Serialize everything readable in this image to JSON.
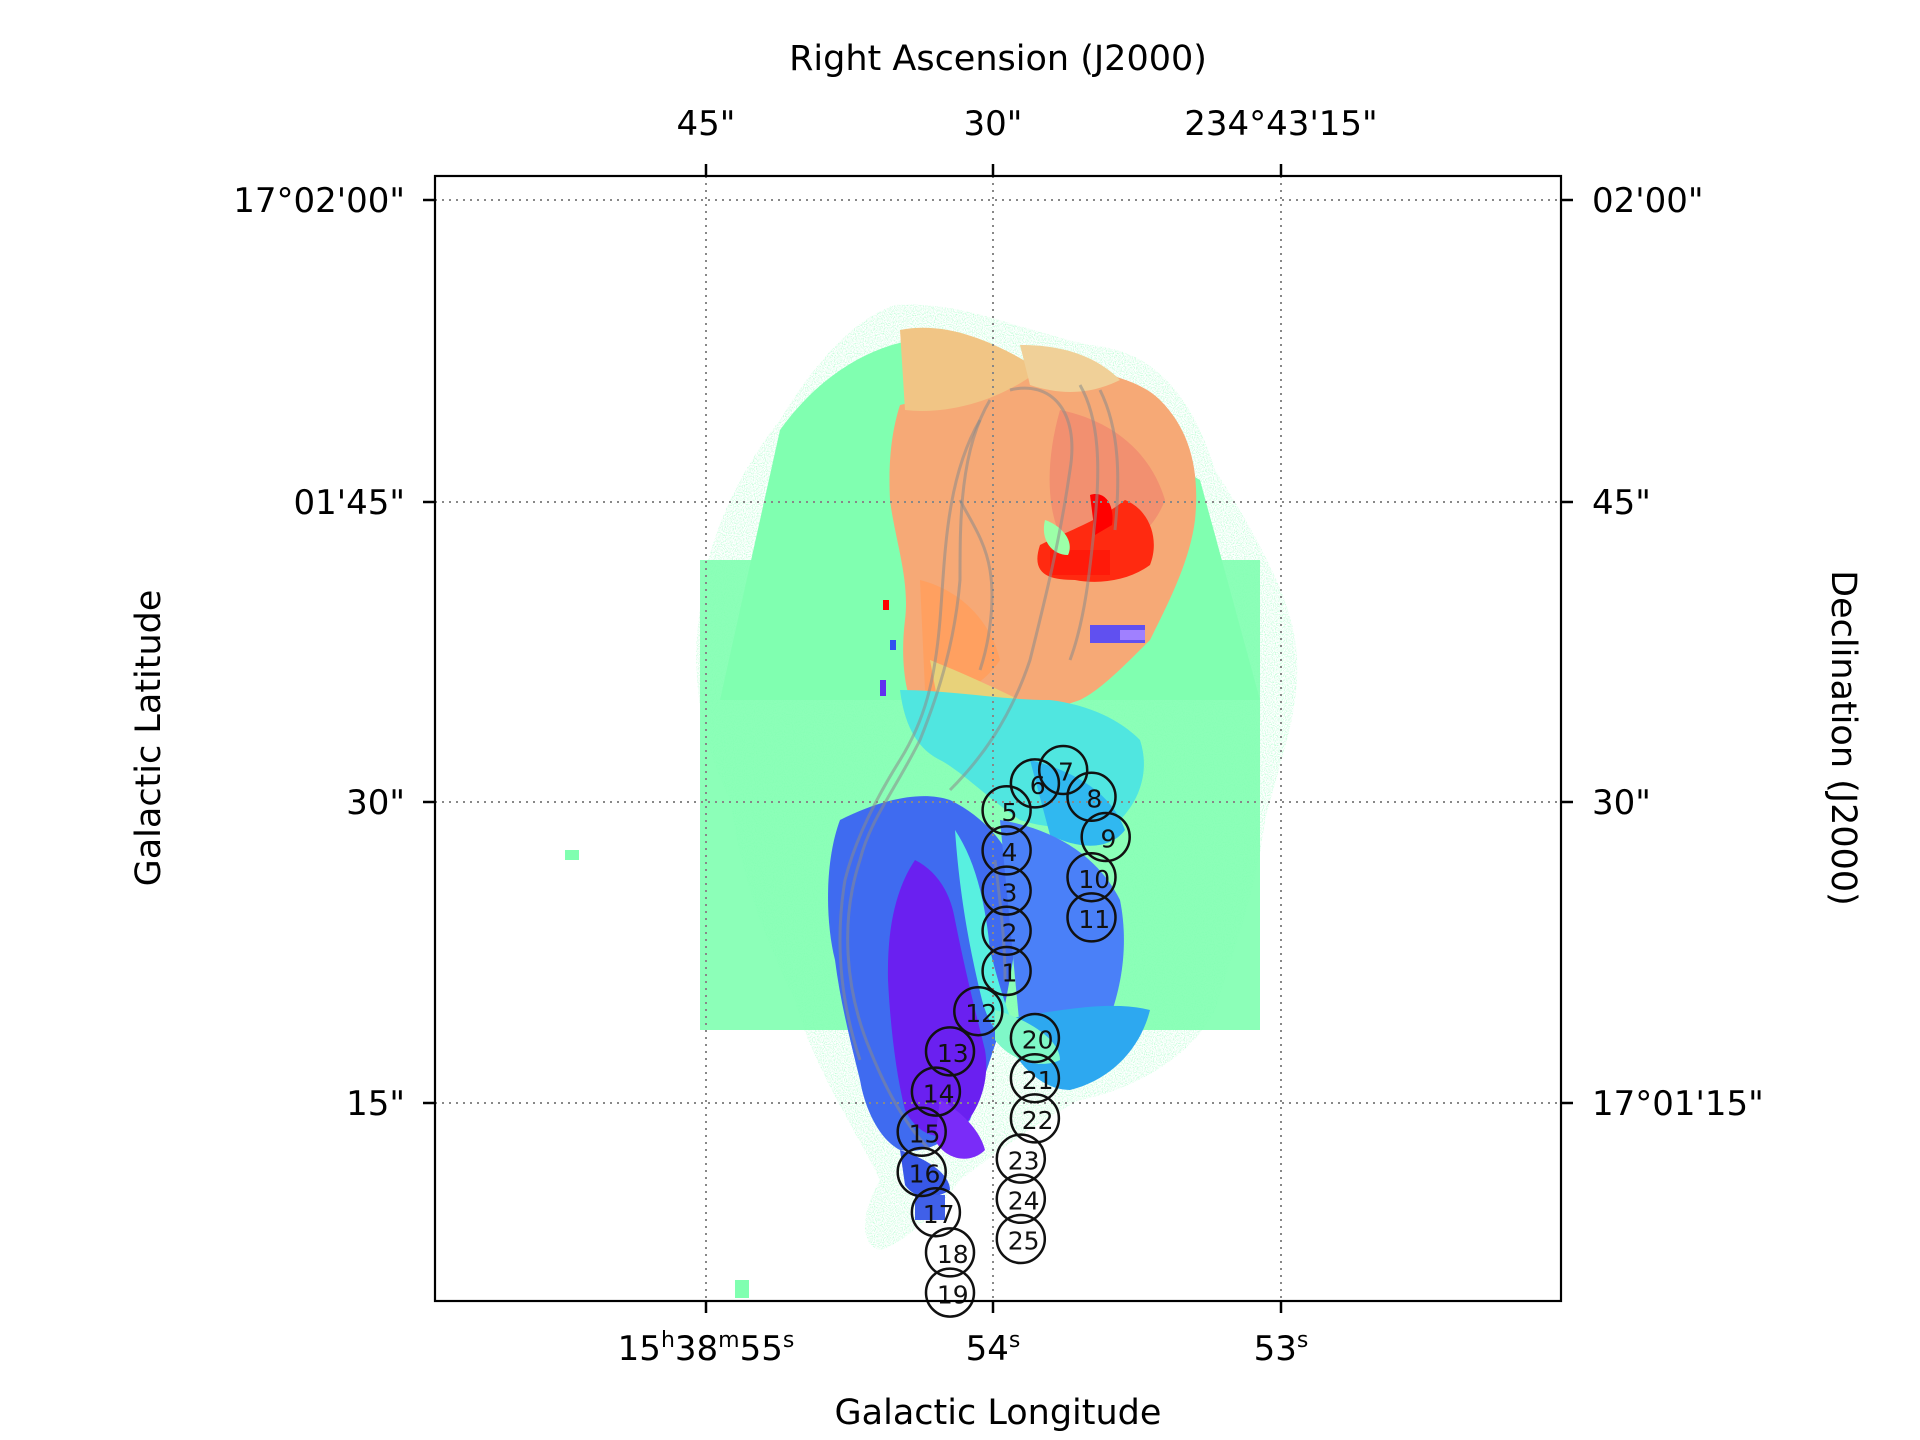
{
  "chart_data": {
    "type": "heatmap",
    "title": "",
    "bottom_axis": {
      "label": "Galactic Longitude",
      "ticks": [
        {
          "main": "15",
          "sup1": "h",
          "mid": "38",
          "sup2": "m",
          "mid2": "55",
          "sup3": "s"
        },
        {
          "main": "54",
          "sup1": "s"
        },
        {
          "main": "53",
          "sup1": "s"
        }
      ]
    },
    "top_axis": {
      "label": "Right Ascension (J2000)",
      "ticks": [
        "45\"",
        "30\"",
        "234°43'15\""
      ]
    },
    "left_axis": {
      "label": "Galactic Latitude",
      "ticks": [
        "17°02'00\"",
        "01'45\"",
        "30\"",
        "15\""
      ]
    },
    "right_axis": {
      "label": "Declination (J2000)",
      "ticks": [
        "02'00\"",
        "45\"",
        "30\"",
        "17°01'15\""
      ]
    },
    "grid": true,
    "colormap": "rainbow",
    "regions": [
      {
        "id": "1",
        "col": 2.0,
        "row": 32.5
      },
      {
        "id": "2",
        "col": 2.0,
        "row": 31.0
      },
      {
        "id": "3",
        "col": 2.0,
        "row": 29.5
      },
      {
        "id": "4",
        "col": 2.0,
        "row": 28.0
      },
      {
        "id": "5",
        "col": 2.0,
        "row": 26.5
      },
      {
        "id": "6",
        "col": 3.0,
        "row": 25.5
      },
      {
        "id": "7",
        "col": 4.0,
        "row": 25.0
      },
      {
        "id": "8",
        "col": 5.0,
        "row": 26.0
      },
      {
        "id": "9",
        "col": 5.5,
        "row": 27.5
      },
      {
        "id": "10",
        "col": 5.0,
        "row": 29.0
      },
      {
        "id": "11",
        "col": 5.0,
        "row": 30.5
      },
      {
        "id": "12",
        "col": 1.0,
        "row": 34.0
      },
      {
        "id": "13",
        "col": 0.0,
        "row": 35.5
      },
      {
        "id": "14",
        "col": -0.5,
        "row": 37.0
      },
      {
        "id": "15",
        "col": -1.0,
        "row": 38.5
      },
      {
        "id": "16",
        "col": -1.0,
        "row": 40.0
      },
      {
        "id": "17",
        "col": -0.5,
        "row": 41.5
      },
      {
        "id": "18",
        "col": 0.0,
        "row": 43.0
      },
      {
        "id": "19",
        "col": 0.0,
        "row": 44.5
      },
      {
        "id": "20",
        "col": 3.0,
        "row": 35.0
      },
      {
        "id": "21",
        "col": 3.0,
        "row": 36.5
      },
      {
        "id": "22",
        "col": 3.0,
        "row": 38.0
      },
      {
        "id": "23",
        "col": 2.5,
        "row": 39.5
      },
      {
        "id": "24",
        "col": 2.5,
        "row": 41.0
      },
      {
        "id": "25",
        "col": 2.5,
        "row": 42.5
      }
    ],
    "region_label_offsets": {
      "x": 0.1,
      "y": 0.4
    }
  }
}
